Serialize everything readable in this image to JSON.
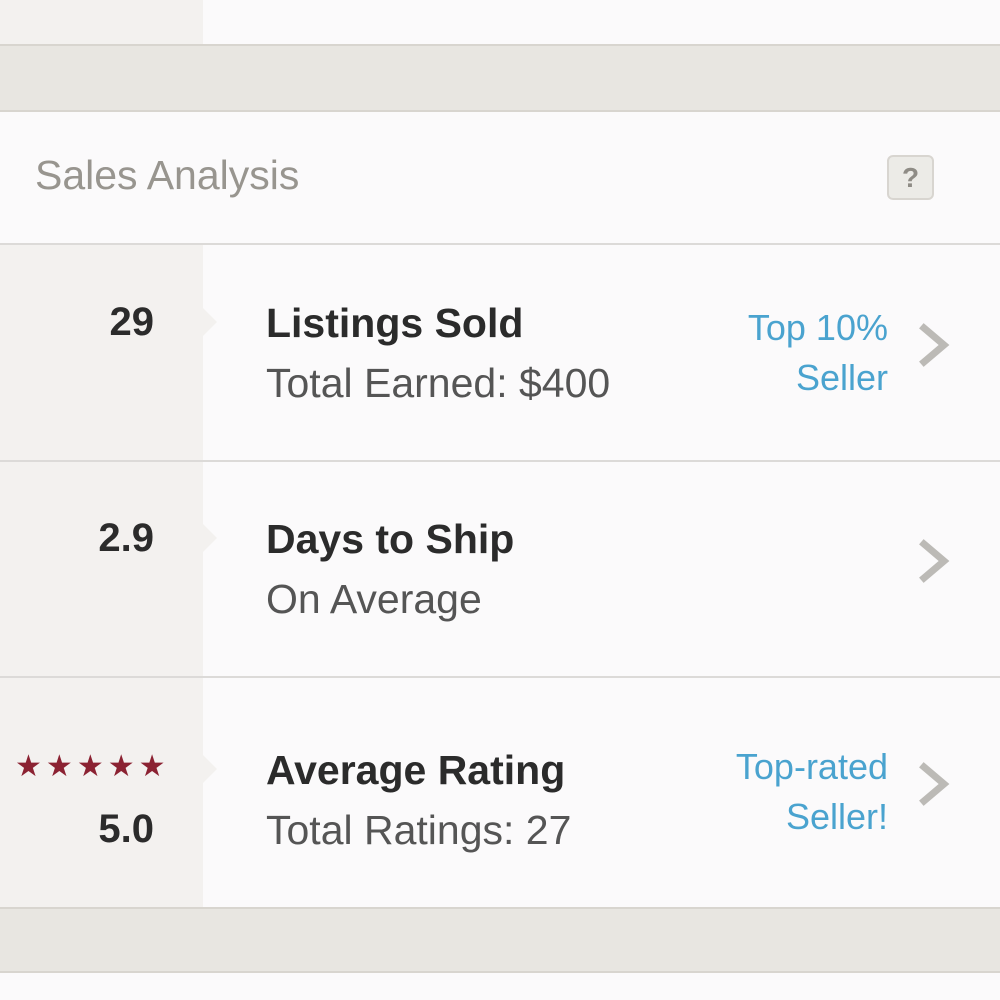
{
  "section": {
    "title": "Sales Analysis",
    "help_label": "?"
  },
  "rows": [
    {
      "value": "29",
      "title": "Listings Sold",
      "subtitle": "Total Earned: $400",
      "badge_line1": "Top 10%",
      "badge_line2": "Seller",
      "icon": "chevron-right-icon"
    },
    {
      "value": "2.9",
      "title": "Days to Ship",
      "subtitle": "On Average",
      "icon": "chevron-right-icon"
    },
    {
      "value": "5.0",
      "title": "Average Rating",
      "subtitle": "Total Ratings: 27",
      "badge_line1": "Top-rated",
      "badge_line2": "Seller!",
      "rating": 5,
      "icon": "chevron-right-icon"
    }
  ],
  "colors": {
    "accent": "#4aa3cf",
    "star": "#8b2232",
    "metric_bg": "#f3f1ef"
  }
}
